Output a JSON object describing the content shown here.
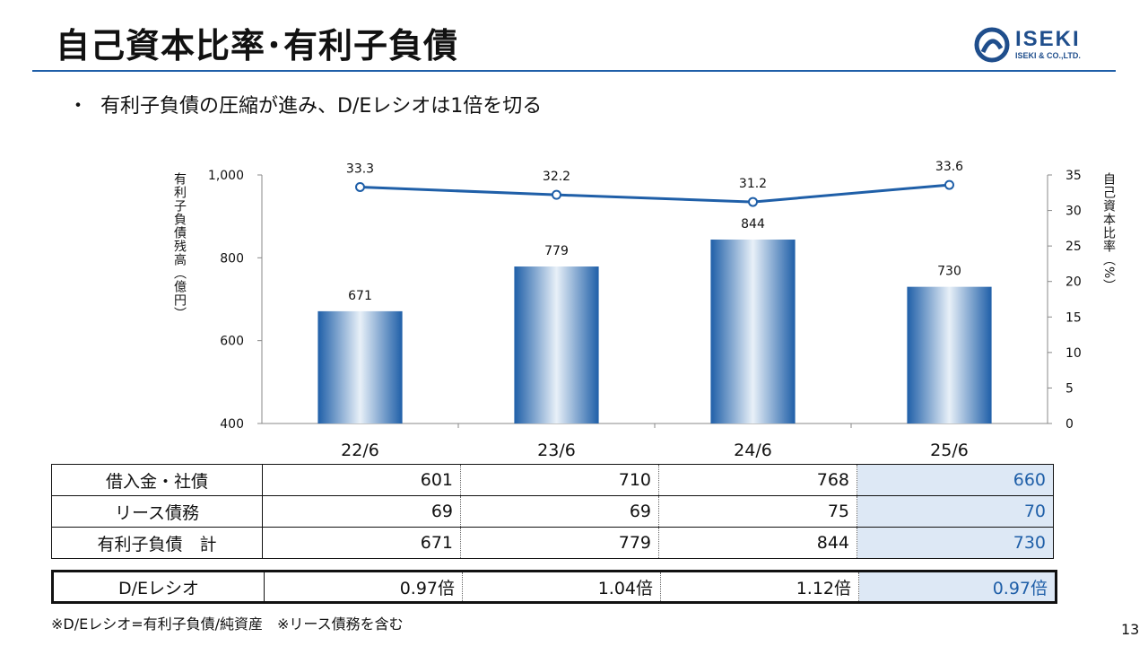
{
  "header": {
    "title": "自己資本比率･有利子負債",
    "logo_text": "ISEKI",
    "logo_sub": "ISEKI & CO.,LTD."
  },
  "bullet": {
    "dot": "・",
    "text": "有利子負債の圧縮が進み、D/Eレシオは1倍を切る"
  },
  "chart_data": {
    "type": "bar",
    "categories": [
      "22/6",
      "23/6",
      "24/6",
      "25/6"
    ],
    "bar_series": {
      "name": "有利子負債残高（億円）",
      "values": [
        671,
        779,
        844,
        730
      ]
    },
    "line_series": {
      "name": "自己資本比率（%）",
      "values": [
        33.3,
        32.2,
        31.2,
        33.6
      ]
    },
    "y_left": {
      "label": "有利子負債残高（億円）",
      "lim": [
        400,
        1000
      ],
      "ticks": [
        400,
        600,
        800,
        1000
      ],
      "tick_labels": [
        "400",
        "600",
        "800",
        "1,000"
      ]
    },
    "y_right": {
      "label": "自己資本比率（%）",
      "lim": [
        0,
        35
      ],
      "ticks": [
        0,
        5,
        10,
        15,
        20,
        25,
        30,
        35
      ]
    },
    "bar_color": "#1f5fa8",
    "line_color": "#1f5fa8",
    "grid": false
  },
  "table": {
    "rows": [
      {
        "label": "借入金・社債",
        "values": [
          "601",
          "710",
          "768",
          "660"
        ]
      },
      {
        "label": "リース債務",
        "values": [
          "69",
          "69",
          "75",
          "70"
        ]
      },
      {
        "label": "有利子負債　計",
        "values": [
          "671",
          "779",
          "844",
          "730"
        ]
      }
    ],
    "de_row": {
      "label": "D/Eレシオ",
      "values": [
        "0.97倍",
        "1.04倍",
        "1.12倍",
        "0.97倍"
      ]
    },
    "highlight_color": "#dde8f5"
  },
  "footnote": "※D/Eレシオ=有利子負債/純資産　※リース債務を含む",
  "page_number": "13"
}
